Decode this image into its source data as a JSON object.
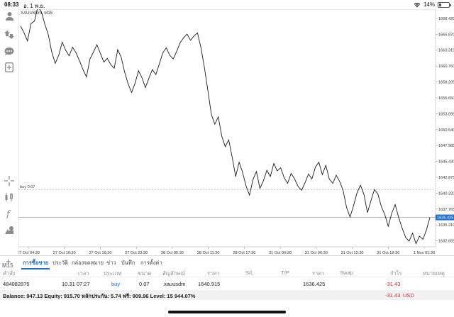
{
  "status_bar": {
    "time": "08:33",
    "date": "อ. 1 พ.ย.",
    "battery": "14%"
  },
  "chart": {
    "symbol_label": "XAUUSDm, M15",
    "timeframe": "M15",
    "buy_label": "buy 0.07",
    "current_price_label": "1636.425",
    "price_ticks": [
      "1668.425",
      "1665.870",
      "1663.315",
      "1660.760",
      "1658.205",
      "1655.650",
      "1653.095",
      "1650.540",
      "1647.985",
      "1645.430",
      "1642.875",
      "1640.320",
      "1637.765",
      "1635.210",
      "1632.655"
    ],
    "time_ticks": [
      "27 Oct 04:30",
      "27 Oct 10:30",
      "27 Oct 16:30",
      "27 Oct 23:30",
      "28 Oct 05:30",
      "28 Oct 11:30",
      "28 Oct 17:30",
      "31 Oct 00:30",
      "31 Oct 06:30",
      "31 Oct 12:30",
      "31 Oct 18:30",
      "1 Nov 01:30"
    ],
    "colors": {
      "line": "#1a1a1a",
      "grid": "#e6e6e6",
      "current_price_bg": "#1f6fd0",
      "buy_line": "#9a9a9a"
    }
  },
  "chart_data": {
    "type": "line",
    "title": "XAUUSDm, M15",
    "series": [
      {
        "name": "XAUUSDm",
        "values": [
          1667.2,
          1666.1,
          1664.8,
          1667.6,
          1668.0,
          1670.3,
          1669.5,
          1667.5,
          1665.8,
          1663.0,
          1661.2,
          1662.5,
          1664.6,
          1663.3,
          1662.4,
          1663.8,
          1662.9,
          1661.6,
          1660.2,
          1659.0,
          1661.9,
          1663.0,
          1664.2,
          1662.8,
          1661.4,
          1662.0,
          1661.0,
          1660.4,
          1663.4,
          1662.2,
          1659.8,
          1657.9,
          1656.5,
          1658.0,
          1660.0,
          1658.9,
          1657.3,
          1658.8,
          1660.2,
          1659.4,
          1661.1,
          1662.9,
          1663.7,
          1662.5,
          1661.9,
          1663.1,
          1664.5,
          1665.3,
          1665.9,
          1664.9,
          1665.6,
          1666.1,
          1663.7,
          1660.5,
          1656.8,
          1653.0,
          1651.4,
          1652.6,
          1649.5,
          1647.8,
          1648.9,
          1646.1,
          1643.0,
          1645.3,
          1643.7,
          1641.5,
          1640.0,
          1642.5,
          1643.8,
          1641.1,
          1642.3,
          1644.0,
          1643.0,
          1645.1,
          1643.9,
          1644.4,
          1642.8,
          1641.9,
          1643.5,
          1642.6,
          1641.4,
          1640.8,
          1642.0,
          1643.4,
          1642.6,
          1644.5,
          1645.3,
          1643.3,
          1644.8,
          1642.6,
          1641.9,
          1643.2,
          1642.2,
          1640.7,
          1638.0,
          1636.5,
          1638.3,
          1640.4,
          1641.6,
          1640.1,
          1637.2,
          1639.1,
          1640.9,
          1640.2,
          1638.2,
          1636.9,
          1635.0,
          1637.1,
          1638.5,
          1636.4,
          1634.7,
          1633.2,
          1632.6,
          1633.9,
          1632.2,
          1633.4,
          1632.9,
          1634.4,
          1636.4
        ]
      }
    ],
    "x_range": [
      "27 Oct 04:30",
      "1 Nov 01:30"
    ],
    "ylim": [
      1631.7,
      1669.9
    ],
    "grid": false,
    "reference_lines": [
      {
        "label": "buy 0.07",
        "value": 1640.915
      },
      {
        "label": "1636.425",
        "value": 1636.425
      }
    ]
  },
  "tabs": [
    "การซื้อขาย",
    "ประวัติ",
    "กล่องจดหมาย",
    "ข่าว",
    "บันทึก",
    "การตั้งค่า"
  ],
  "table": {
    "headers": [
      "คำสั่ง",
      "เวลา",
      "ประเภท",
      "ขนาด",
      "สัญลักษณ์",
      "ราคา",
      "S/L",
      "T/P",
      "ราคา",
      "Swap",
      "กำไร",
      "หมายเหตุ"
    ],
    "row": {
      "order": "484082875",
      "time": "10.31 07:27",
      "type": "buy",
      "size": "0.07",
      "symbol": "xauusdm",
      "open_price": "1640.915",
      "sl": "",
      "tp": "",
      "price": "1636.425",
      "swap": "",
      "profit": "-31.43",
      "note": ""
    }
  },
  "balance": {
    "text": "Balance: 947.13 Equity: 915.70 หลักประกัน: 5.74 ฟรี: 909.96 Level: 15 944.07%",
    "profit": "-31.43",
    "currency": "USD"
  }
}
